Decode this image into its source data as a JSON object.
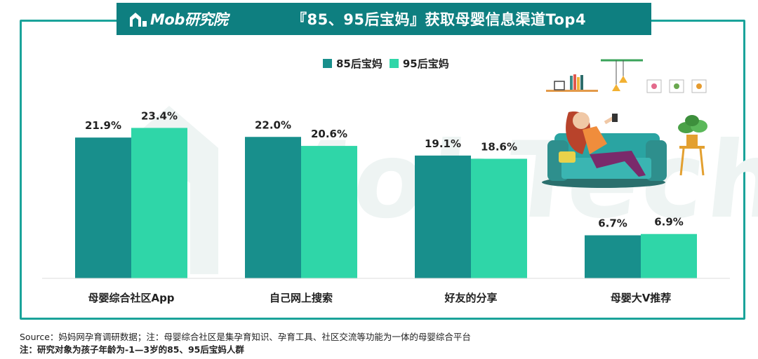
{
  "header": {
    "logo_text": "Mob研究院",
    "title": "『85、95后宝妈』获取母婴信息渠道Top4"
  },
  "watermark": "MobTech",
  "legend": [
    {
      "label": "85后宝妈",
      "color": "#188f8c"
    },
    {
      "label": "95后宝妈",
      "color": "#2fd6a8"
    }
  ],
  "chart_data": {
    "type": "bar",
    "categories": [
      "母婴综合社区App",
      "自己网上搜索",
      "好友的分享",
      "母婴大V推荐"
    ],
    "series": [
      {
        "name": "85后宝妈",
        "values": [
          21.9,
          22.0,
          19.1,
          6.7
        ],
        "labels": [
          "21.9%",
          "22.0%",
          "19.1%",
          "6.7%"
        ],
        "color": "#188f8c"
      },
      {
        "name": "95后宝妈",
        "values": [
          23.4,
          20.6,
          18.6,
          6.9
        ],
        "labels": [
          "23.4%",
          "20.6%",
          "18.6%",
          "6.9%"
        ],
        "color": "#2fd6a8"
      }
    ],
    "title": "『85、95后宝妈』获取母婴信息渠道Top4",
    "ylim": [
      0,
      30
    ],
    "grid": false,
    "legend_position": "top"
  },
  "footer": {
    "source": "Source：妈妈网孕育调研数据；注：母婴综合社区是集孕育知识、孕育工具、社区交流等功能为一体的母婴综合平台",
    "note": "注：研究对象为孩子年龄为-1—3岁的85、95后宝妈人群"
  }
}
